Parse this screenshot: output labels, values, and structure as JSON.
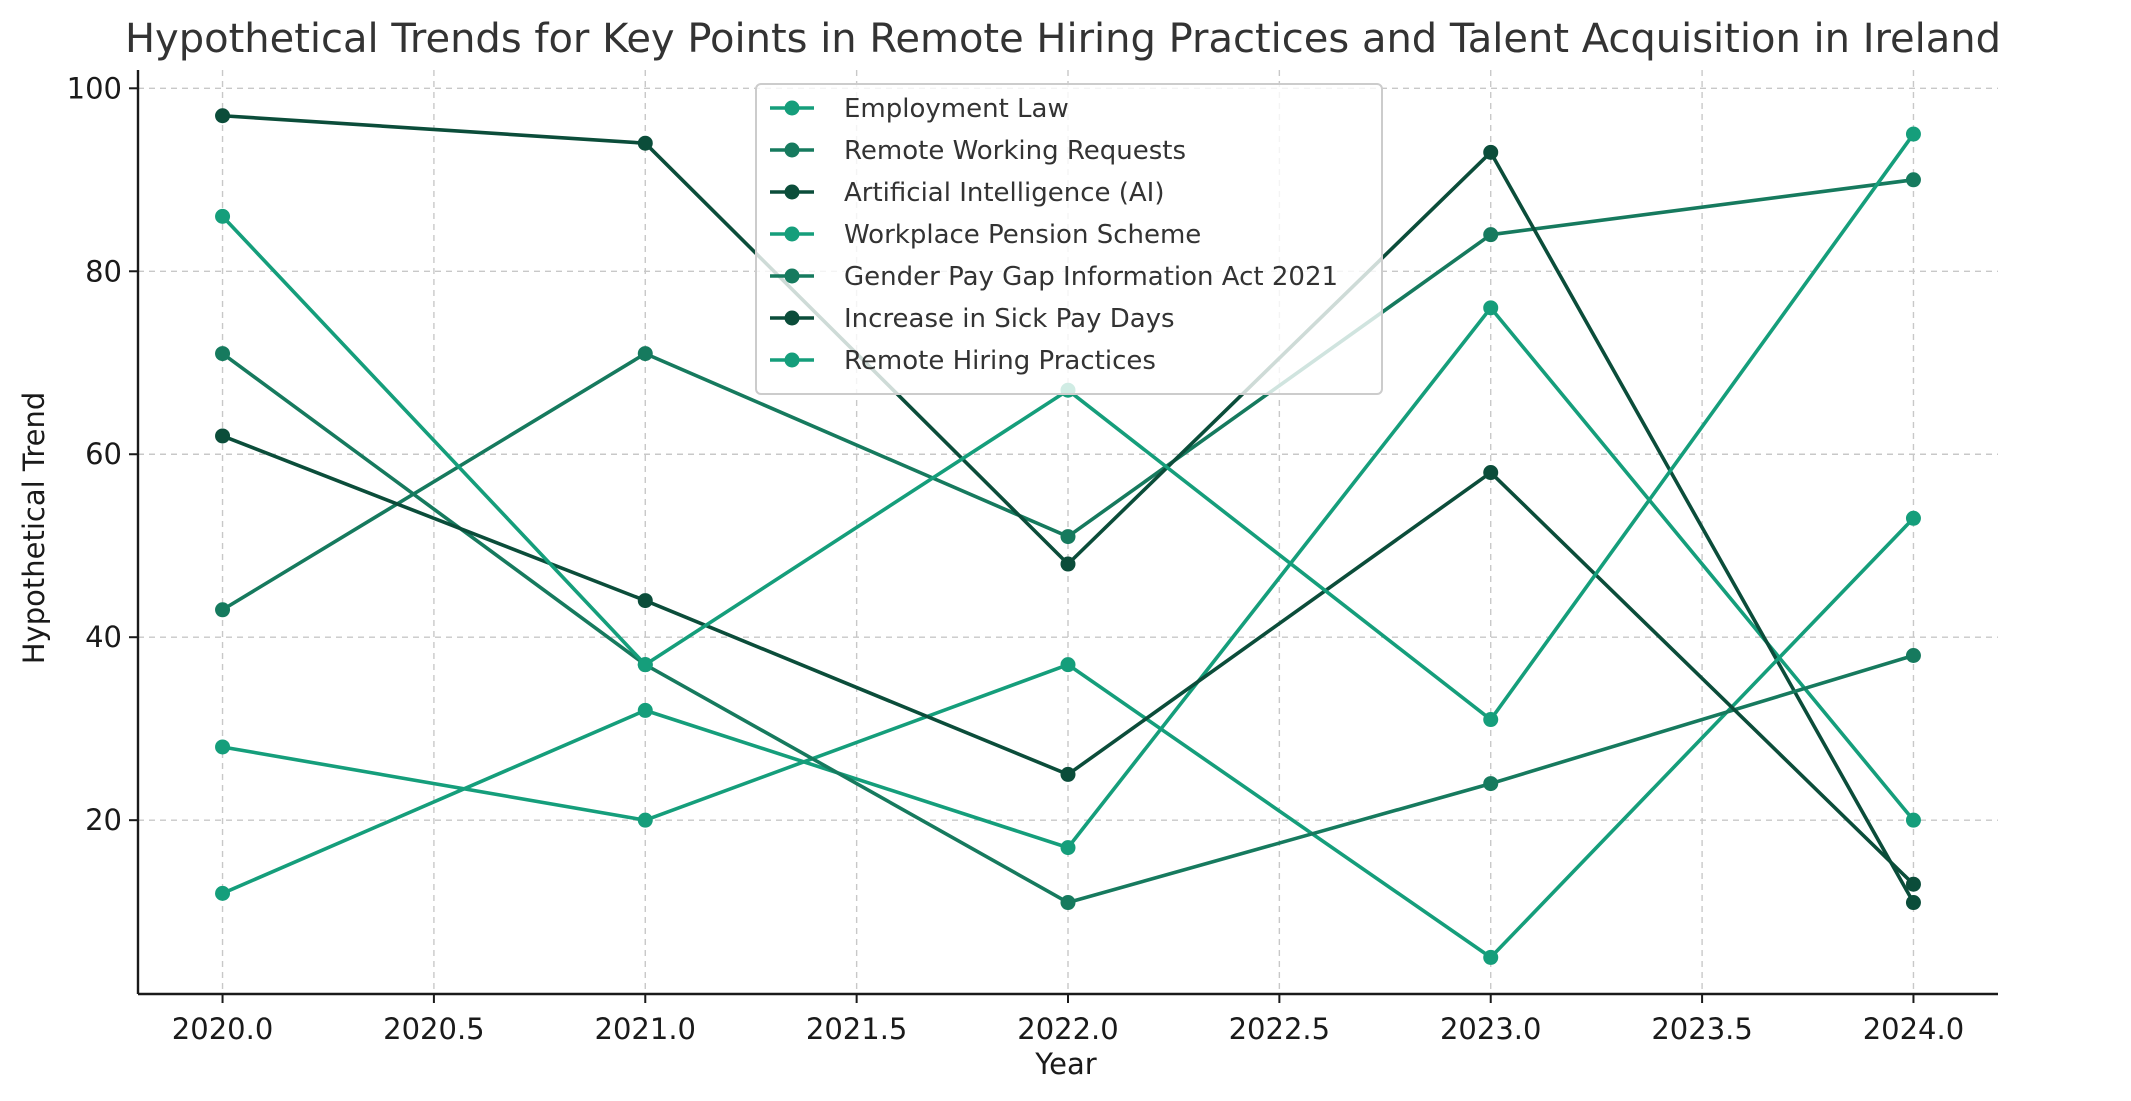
{
  "chart_data": {
    "type": "line",
    "title": "Hypothetical Trends for Key Points in Remote Hiring Practices and Talent Acquisition in Ireland",
    "xlabel": "Year",
    "ylabel": "Hypothetical Trend",
    "x": [
      2020,
      2021,
      2022,
      2023,
      2024
    ],
    "xlim": [
      2019.8,
      2024.2
    ],
    "ylim": [
      1,
      102
    ],
    "xticks": [
      "2020.0",
      "2020.5",
      "2021.0",
      "2021.5",
      "2022.0",
      "2022.5",
      "2023.0",
      "2023.5",
      "2024.0"
    ],
    "xtick_values": [
      2020,
      2020.5,
      2021,
      2021.5,
      2022,
      2022.5,
      2023,
      2023.5,
      2024
    ],
    "yticks": [
      "20",
      "40",
      "60",
      "80",
      "100"
    ],
    "ytick_values": [
      20,
      40,
      60,
      80,
      100
    ],
    "grid": true,
    "legend_position": "top-center",
    "series": [
      {
        "name": "Employment Law",
        "color": "#159e7b",
        "values": [
          12,
          32,
          17,
          76,
          20
        ]
      },
      {
        "name": "Remote Working Requests",
        "color": "#167a5e",
        "values": [
          43,
          71,
          51,
          84,
          90
        ]
      },
      {
        "name": "Artificial Intelligence (AI)",
        "color": "#0b4d3a",
        "values": [
          97,
          94,
          48,
          93,
          11
        ]
      },
      {
        "name": "Workplace Pension Scheme",
        "color": "#159e7b",
        "values": [
          28,
          20,
          37,
          5,
          53
        ]
      },
      {
        "name": "Gender Pay Gap Information Act 2021",
        "color": "#167a5e",
        "values": [
          71,
          37,
          11,
          24,
          38
        ]
      },
      {
        "name": "Increase in Sick Pay Days",
        "color": "#0b4d3a",
        "values": [
          62,
          44,
          25,
          58,
          13
        ]
      },
      {
        "name": "Remote Hiring Practices",
        "color": "#159e7b",
        "values": [
          86,
          37,
          67,
          31,
          95
        ]
      }
    ]
  }
}
